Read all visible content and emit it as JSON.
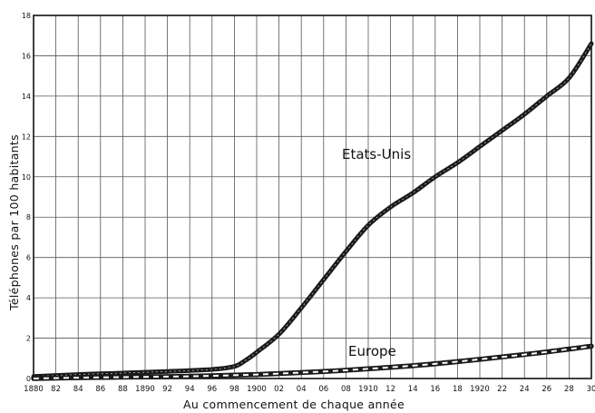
{
  "chart_data": {
    "type": "line",
    "xlabel": "Au commencement de chaque année",
    "ylabel": "Téléphones par 100 habitants",
    "xlim": [
      1880,
      1930
    ],
    "ylim": [
      0,
      18
    ],
    "x_tick_values": [
      1880,
      1882,
      1884,
      1886,
      1888,
      1890,
      1892,
      1894,
      1896,
      1898,
      1900,
      1902,
      1904,
      1906,
      1908,
      1910,
      1912,
      1914,
      1916,
      1918,
      1920,
      1922,
      1924,
      1926,
      1928,
      1930
    ],
    "x_tick_labels": [
      "1880",
      "82",
      "84",
      "86",
      "88",
      "1890",
      "92",
      "94",
      "96",
      "98",
      "1900",
      "02",
      "04",
      "06",
      "08",
      "1910",
      "12",
      "14",
      "16",
      "18",
      "1920",
      "22",
      "24",
      "26",
      "28",
      "30"
    ],
    "y_tick_values": [
      0,
      2,
      4,
      6,
      8,
      10,
      12,
      14,
      16,
      18
    ],
    "y_tick_labels": [
      "0",
      "2",
      "4",
      "6",
      "8",
      "10",
      "12",
      "14",
      "16",
      "18"
    ],
    "grid": true,
    "series": [
      {
        "name": "Etats-Unis",
        "style": "solid-thick",
        "color": "#1a1a1a",
        "x": [
          1880,
          1884,
          1888,
          1892,
          1896,
          1898,
          1899,
          1900,
          1902,
          1904,
          1906,
          1908,
          1910,
          1912,
          1914,
          1916,
          1918,
          1920,
          1922,
          1924,
          1926,
          1928,
          1930
        ],
        "y": [
          0.1,
          0.2,
          0.27,
          0.35,
          0.45,
          0.6,
          0.9,
          1.3,
          2.2,
          3.5,
          4.9,
          6.3,
          7.6,
          8.5,
          9.2,
          10.0,
          10.7,
          11.5,
          12.3,
          13.1,
          14.0,
          14.9,
          16.6
        ]
      },
      {
        "name": "Europe",
        "style": "dashed",
        "color": "#1a1a1a",
        "x": [
          1880,
          1885,
          1890,
          1895,
          1900,
          1905,
          1910,
          1915,
          1920,
          1925,
          1930
        ],
        "y": [
          0.0,
          0.05,
          0.08,
          0.12,
          0.2,
          0.32,
          0.48,
          0.68,
          0.95,
          1.25,
          1.6
        ]
      }
    ]
  }
}
